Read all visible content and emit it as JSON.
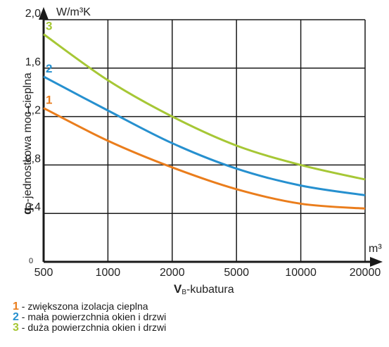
{
  "chart_data": {
    "type": "line",
    "y_unit": "W/m³K",
    "x_unit": "m³",
    "ylabel_bold": "q",
    "ylabel_sub": "V",
    "ylabel_rest": "-jednostkowa moc cieplna",
    "xlabel_bold": "V",
    "xlabel_sub": "B",
    "xlabel_rest": "-kubatura",
    "origin_label": "0",
    "x_ticks": [
      "500",
      "1000",
      "2000",
      "5000",
      "10000",
      "20000"
    ],
    "y_ticks": [
      "0,4",
      "0,8",
      "1,2",
      "1,6",
      "2,0"
    ],
    "ylim": [
      0,
      2.0
    ],
    "grid": true,
    "series": [
      {
        "name": "1",
        "color": "#ea7d1c",
        "x": [
          500,
          1000,
          2000,
          5000,
          10000,
          20000
        ],
        "y": [
          1.27,
          1.0,
          0.78,
          0.6,
          0.48,
          0.44
        ]
      },
      {
        "name": "2",
        "color": "#2690cf",
        "x": [
          500,
          1000,
          2000,
          5000,
          10000,
          20000
        ],
        "y": [
          1.53,
          1.25,
          0.98,
          0.77,
          0.63,
          0.55
        ]
      },
      {
        "name": "3",
        "color": "#a6c735",
        "x": [
          500,
          1000,
          2000,
          5000,
          10000,
          20000
        ],
        "y": [
          1.88,
          1.5,
          1.2,
          0.96,
          0.8,
          0.68
        ]
      }
    ]
  },
  "legend": [
    {
      "num": "1",
      "text": " - zwiększona izolacja cieplna",
      "color": "#ea7d1c"
    },
    {
      "num": "2",
      "text": " - mała powierzchnia okien i drzwi",
      "color": "#2690cf"
    },
    {
      "num": "3",
      "text": " - duża powierzchnia okien i drzwi",
      "color": "#a6c735"
    }
  ]
}
